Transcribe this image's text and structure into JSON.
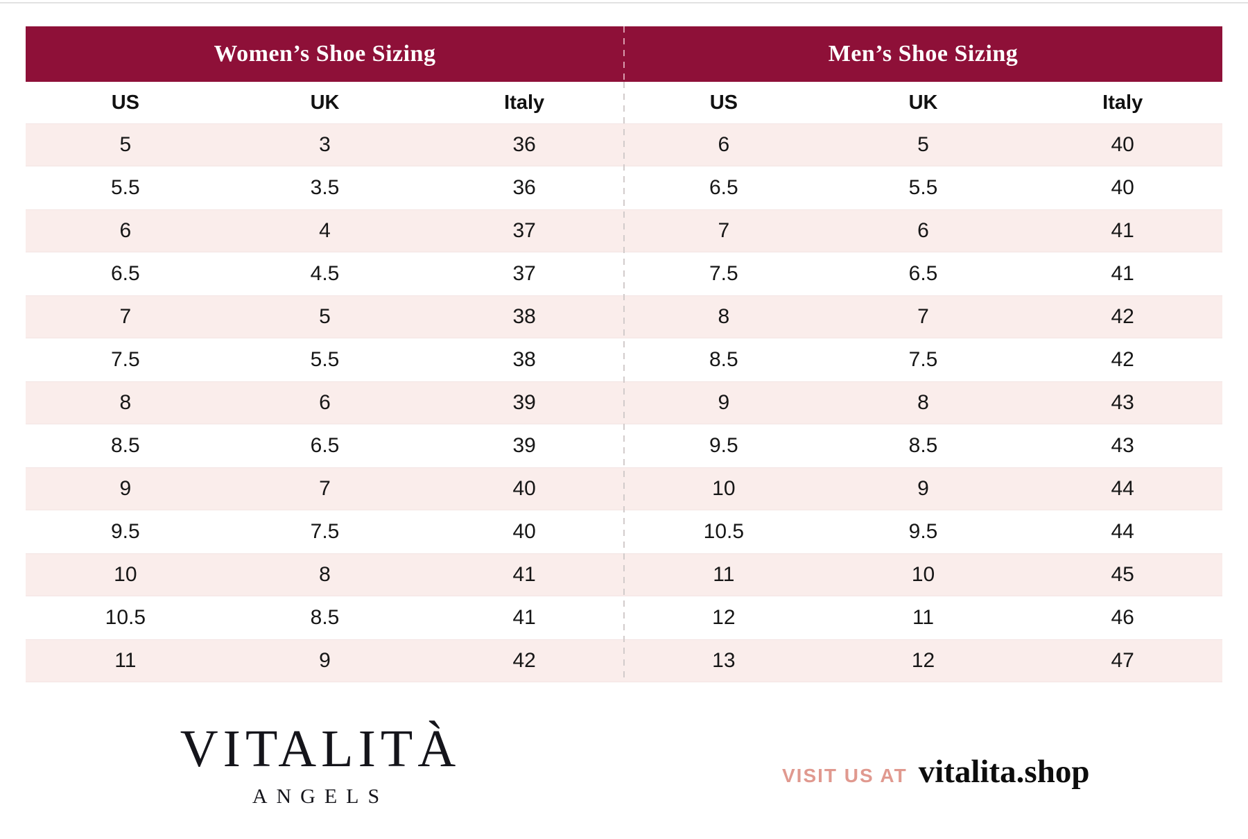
{
  "chart_data": [
    {
      "type": "table",
      "title": "Women’s Shoe Sizing",
      "columns": [
        "US",
        "UK",
        "Italy"
      ],
      "rows": [
        [
          "5",
          "3",
          "36"
        ],
        [
          "5.5",
          "3.5",
          "36"
        ],
        [
          "6",
          "4",
          "37"
        ],
        [
          "6.5",
          "4.5",
          "37"
        ],
        [
          "7",
          "5",
          "38"
        ],
        [
          "7.5",
          "5.5",
          "38"
        ],
        [
          "8",
          "6",
          "39"
        ],
        [
          "8.5",
          "6.5",
          "39"
        ],
        [
          "9",
          "7",
          "40"
        ],
        [
          "9.5",
          "7.5",
          "40"
        ],
        [
          "10",
          "8",
          "41"
        ],
        [
          "10.5",
          "8.5",
          "41"
        ],
        [
          "11",
          "9",
          "42"
        ]
      ]
    },
    {
      "type": "table",
      "title": "Men’s Shoe Sizing",
      "columns": [
        "US",
        "UK",
        "Italy"
      ],
      "rows": [
        [
          "6",
          "5",
          "40"
        ],
        [
          "6.5",
          "5.5",
          "40"
        ],
        [
          "7",
          "6",
          "41"
        ],
        [
          "7.5",
          "6.5",
          "41"
        ],
        [
          "8",
          "7",
          "42"
        ],
        [
          "8.5",
          "7.5",
          "42"
        ],
        [
          "9",
          "8",
          "43"
        ],
        [
          "9.5",
          "8.5",
          "43"
        ],
        [
          "10",
          "9",
          "44"
        ],
        [
          "10.5",
          "9.5",
          "44"
        ],
        [
          "11",
          "10",
          "45"
        ],
        [
          "12",
          "11",
          "46"
        ],
        [
          "13",
          "12",
          "47"
        ]
      ]
    }
  ],
  "footer": {
    "brand": "VITALITÀ",
    "brand_sub": "ANGELS",
    "visit_label": "VISIT US AT",
    "visit_url": "vitalita.shop"
  },
  "colors": {
    "header_bg": "#8E1038",
    "row_pink": "#FAEDEB",
    "accent_salmon": "#E0998F",
    "divider": "#D2CBCB"
  }
}
